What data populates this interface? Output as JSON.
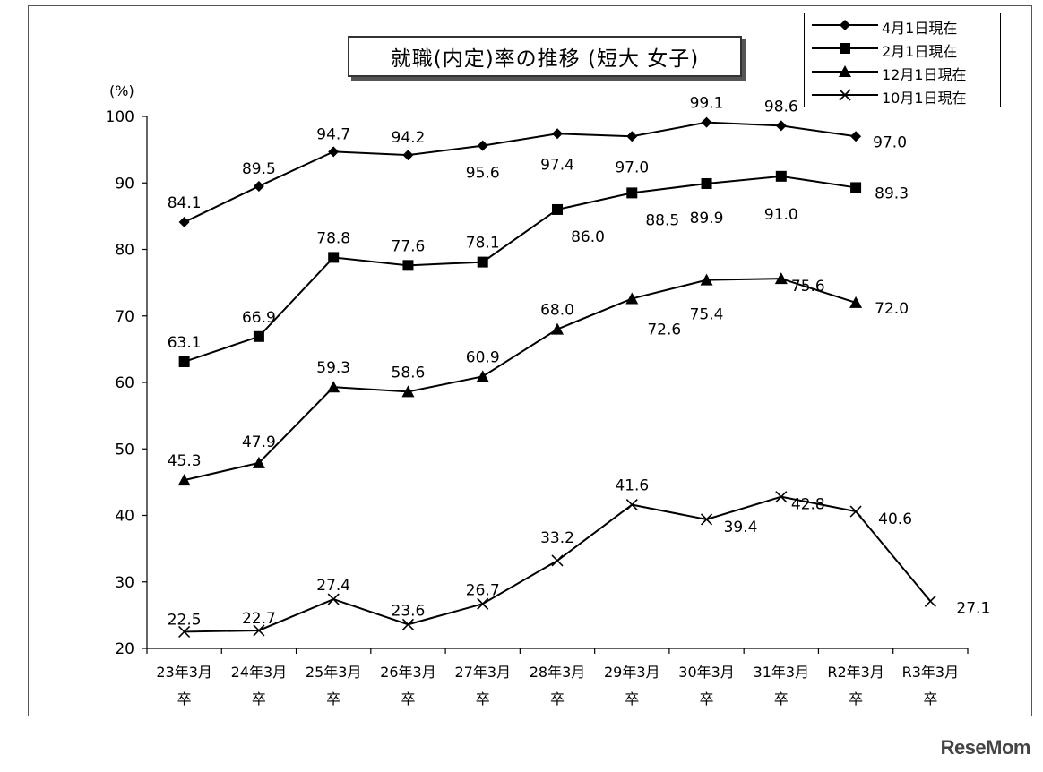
{
  "chart_data": {
    "type": "line",
    "title": "就職(内定)率の推移 (短大 女子)",
    "ylabel": "(%)",
    "ylim": [
      20,
      100
    ],
    "yticks": [
      20,
      30,
      40,
      50,
      60,
      70,
      80,
      90,
      100
    ],
    "categories": [
      [
        "23年3月",
        "卒"
      ],
      [
        "24年3月",
        "卒"
      ],
      [
        "25年3月",
        "卒"
      ],
      [
        "26年3月",
        "卒"
      ],
      [
        "27年3月",
        "卒"
      ],
      [
        "28年3月",
        "卒"
      ],
      [
        "29年3月",
        "卒"
      ],
      [
        "30年3月",
        "卒"
      ],
      [
        "31年3月",
        "卒"
      ],
      [
        "R2年3月",
        "卒"
      ],
      [
        "R3年3月",
        "卒"
      ]
    ],
    "legend_position": "top-right",
    "series": [
      {
        "name": "4月1日現在",
        "marker": "diamond",
        "values": [
          84.1,
          89.5,
          94.7,
          94.2,
          95.6,
          97.4,
          97.0,
          99.1,
          98.6,
          97.0,
          null
        ],
        "labels": [
          "84.1",
          "89.5",
          "94.7",
          "94.2",
          "95.6",
          "97.4",
          "97.0",
          "99.1",
          "98.6",
          "97.0",
          null
        ]
      },
      {
        "name": "2月1日現在",
        "marker": "square",
        "values": [
          63.1,
          66.9,
          78.8,
          77.6,
          78.1,
          86.0,
          88.5,
          89.9,
          91.0,
          89.3,
          null
        ],
        "labels": [
          "63.1",
          "66.9",
          "78.8",
          "77.6",
          "78.1",
          "86.0",
          "88.5",
          "89.9",
          "91.0",
          "89.3",
          null
        ]
      },
      {
        "name": "12月1日現在",
        "marker": "triangle",
        "values": [
          45.3,
          47.9,
          59.3,
          58.6,
          60.9,
          68.0,
          72.6,
          75.4,
          75.6,
          72.0,
          null
        ],
        "labels": [
          "45.3",
          "47.9",
          "59.3",
          "58.6",
          "60.9",
          "68.0",
          "72.6",
          "75.4",
          "75.6",
          "72.0",
          null
        ]
      },
      {
        "name": "10月1日現在",
        "marker": "x",
        "values": [
          22.5,
          22.7,
          27.4,
          23.6,
          26.7,
          33.2,
          41.6,
          39.4,
          42.8,
          40.6,
          27.1
        ],
        "labels": [
          "22.5",
          "22.7",
          "27.4",
          "23.6",
          "26.7",
          "33.2",
          "41.6",
          "39.4",
          "42.8",
          "40.6",
          "27.1"
        ]
      }
    ]
  },
  "watermark": "ReseMom"
}
